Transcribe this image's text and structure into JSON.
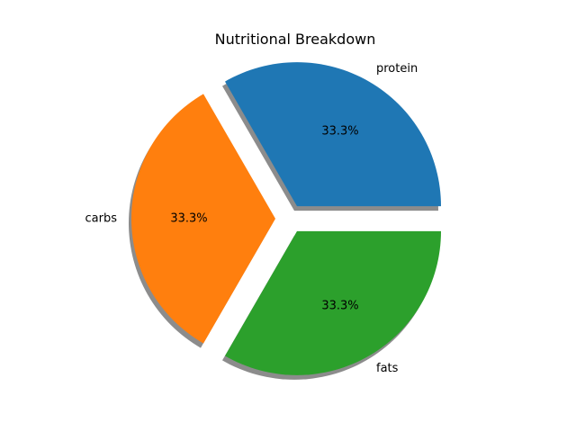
{
  "chart_data": {
    "type": "pie",
    "title": "Nutritional Breakdown",
    "categories": [
      "protein",
      "carbs",
      "fats"
    ],
    "values": [
      33.3,
      33.3,
      33.3
    ],
    "percent_labels": [
      "33.3%",
      "33.3%",
      "33.3%"
    ],
    "colors": [
      "#1f77b4",
      "#ff7f0e",
      "#2ca02c"
    ],
    "explode": [
      0.1,
      0.1,
      0.1
    ],
    "start_angle": 0,
    "shadow": true,
    "legend": "none"
  }
}
